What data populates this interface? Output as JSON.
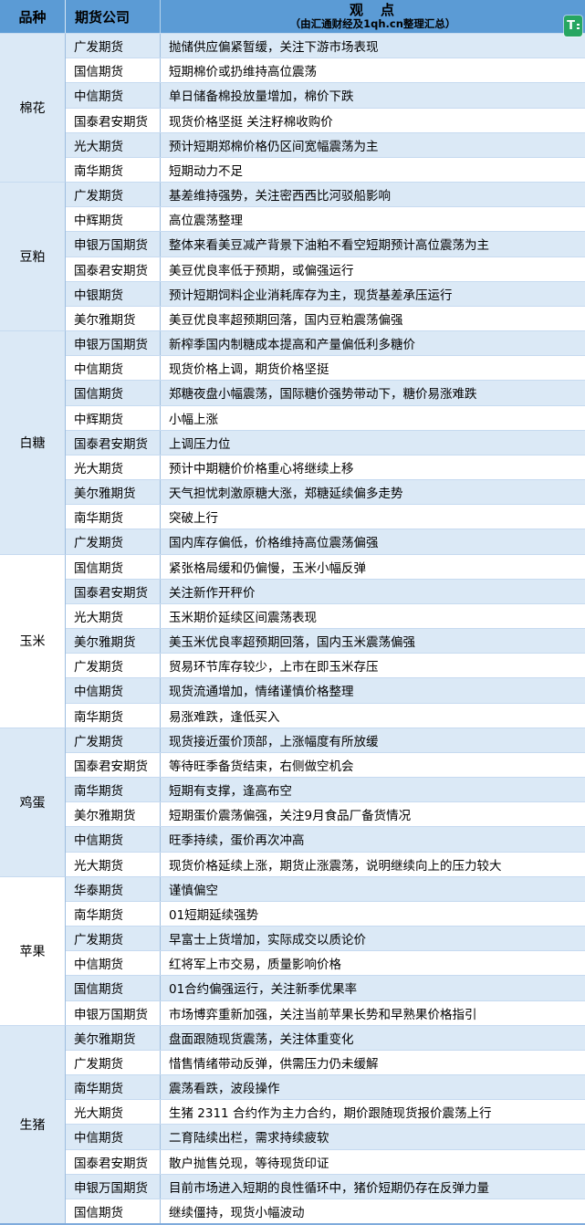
{
  "header": {
    "col_commodity": "品种",
    "col_company": "期货公司",
    "viewpoint_title": "观　点",
    "viewpoint_subtitle": "（由汇通财经及1qh.cn整理汇总）"
  },
  "extension_icon": {
    "label": "T",
    "color": "#27a661"
  },
  "colors": {
    "header_bg": "#5b9bd5",
    "row_light_blue": "#dbe9f6",
    "row_white": "#ffffff",
    "border_vertical": "#9fbedf",
    "border_horizontal": "#c6daf0"
  },
  "sections": [
    {
      "name": "棉花",
      "rows": [
        {
          "company": "广发期货",
          "view": "抛储供应偏紧暂缓，关注下游市场表现"
        },
        {
          "company": "国信期货",
          "view": "短期棉价或扔维持高位震荡"
        },
        {
          "company": "中信期货",
          "view": "单日储备棉投放量增加，棉价下跌"
        },
        {
          "company": "国泰君安期货",
          "view": "现货价格坚挺 关注籽棉收购价"
        },
        {
          "company": "光大期货",
          "view": "预计短期郑棉价格仍区间宽幅震荡为主"
        },
        {
          "company": "南华期货",
          "view": "短期动力不足"
        }
      ]
    },
    {
      "name": "豆粕",
      "rows": [
        {
          "company": "广发期货",
          "view": "基差维持强势，关注密西西比河驳船影响"
        },
        {
          "company": "中辉期货",
          "view": "高位震荡整理"
        },
        {
          "company": "申银万国期货",
          "view": "整体来看美豆减产背景下油粕不看空短期预计高位震荡为主"
        },
        {
          "company": "国泰君安期货",
          "view": "美豆优良率低于预期，或偏强运行"
        },
        {
          "company": "中银期货",
          "view": "预计短期饲料企业消耗库存为主，现货基差承压运行"
        },
        {
          "company": "美尔雅期货",
          "view": "美豆优良率超预期回落，国内豆粕震荡偏强"
        }
      ]
    },
    {
      "name": "白糖",
      "rows": [
        {
          "company": "申银万国期货",
          "view": "新榨季国内制糖成本提高和产量偏低利多糖价"
        },
        {
          "company": "中信期货",
          "view": "现货价格上调，期货价格坚挺"
        },
        {
          "company": "国信期货",
          "view": "郑糖夜盘小幅震荡，国际糖价强势带动下，糖价易涨难跌"
        },
        {
          "company": "中辉期货",
          "view": "小幅上涨"
        },
        {
          "company": "国泰君安期货",
          "view": "上调压力位"
        },
        {
          "company": "光大期货",
          "view": "预计中期糖价价格重心将继续上移"
        },
        {
          "company": "美尔雅期货",
          "view": "天气担忧刺激原糖大涨，郑糖延续偏多走势"
        },
        {
          "company": "南华期货",
          "view": "突破上行"
        },
        {
          "company": "广发期货",
          "view": "国内库存偏低，价格维持高位震荡偏强"
        }
      ]
    },
    {
      "name": "玉米",
      "rows": [
        {
          "company": "国信期货",
          "view": "紧张格局缓和仍偏慢，玉米小幅反弹"
        },
        {
          "company": "国泰君安期货",
          "view": "关注新作开秤价"
        },
        {
          "company": "光大期货",
          "view": "玉米期价延续区间震荡表现"
        },
        {
          "company": "美尔雅期货",
          "view": "美玉米优良率超预期回落，国内玉米震荡偏强"
        },
        {
          "company": "广发期货",
          "view": "贸易环节库存较少，上市在即玉米存压"
        },
        {
          "company": "中信期货",
          "view": "现货流通增加，情绪谨慎价格整理"
        },
        {
          "company": "南华期货",
          "view": "易涨难跌，逢低买入"
        }
      ]
    },
    {
      "name": "鸡蛋",
      "rows": [
        {
          "company": "广发期货",
          "view": "现货接近蛋价顶部，上涨幅度有所放缓"
        },
        {
          "company": "国泰君安期货",
          "view": "等待旺季备货结束，右侧做空机会"
        },
        {
          "company": "南华期货",
          "view": "短期有支撑，逢高布空"
        },
        {
          "company": "美尔雅期货",
          "view": "短期蛋价震荡偏强，关注9月食品厂备货情况"
        },
        {
          "company": "中信期货",
          "view": "旺季持续，蛋价再次冲高"
        },
        {
          "company": "光大期货",
          "view": "现货价格延续上涨，期货止涨震荡，说明继续向上的压力较大"
        }
      ]
    },
    {
      "name": "苹果",
      "rows": [
        {
          "company": "华泰期货",
          "view": "谨慎偏空"
        },
        {
          "company": "南华期货",
          "view": "01短期延续强势"
        },
        {
          "company": "广发期货",
          "view": "早富士上货增加，实际成交以质论价"
        },
        {
          "company": "中信期货",
          "view": "红将军上市交易，质量影响价格"
        },
        {
          "company": "国信期货",
          "view": "01合约偏强运行，关注新季优果率"
        },
        {
          "company": "申银万国期货",
          "view": "市场博弈重新加强，关注当前苹果长势和早熟果价格指引"
        }
      ]
    },
    {
      "name": "生猪",
      "rows": [
        {
          "company": "美尔雅期货",
          "view": "盘面跟随现货震荡，关注体重变化"
        },
        {
          "company": "广发期货",
          "view": "惜售情绪带动反弹，供需压力仍未缓解"
        },
        {
          "company": "南华期货",
          "view": "震荡看跌，波段操作"
        },
        {
          "company": "光大期货",
          "view": "生猪 2311 合约作为主力合约，期价跟随现货报价震荡上行"
        },
        {
          "company": "中信期货",
          "view": "二育陆续出栏，需求持续疲软"
        },
        {
          "company": "国泰君安期货",
          "view": "散户抛售兑现，等待现货印证"
        },
        {
          "company": "申银万国期货",
          "view": "目前市场进入短期的良性循环中，猪价短期仍存在反弹力量"
        },
        {
          "company": "国信期货",
          "view": "继续僵持，现货小幅波动"
        }
      ]
    }
  ]
}
